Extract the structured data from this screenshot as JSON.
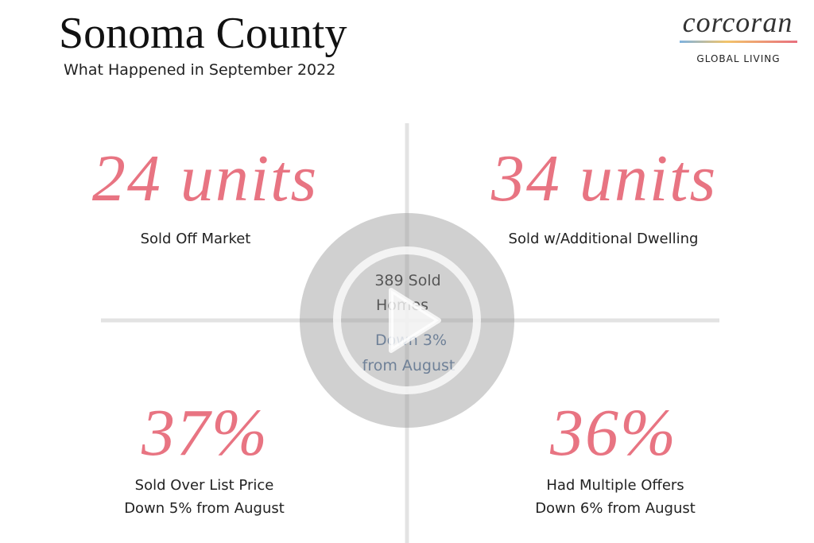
{
  "header": {
    "title": "Sonoma County",
    "subtitle": "What Happened in September 2022"
  },
  "logo": {
    "name": "corcoran",
    "tagline": "GLOBAL LIVING"
  },
  "stats": [
    {
      "figure": "24 units",
      "lines": [
        "Sold Off Market"
      ]
    },
    {
      "figure": "34 units",
      "lines": [
        "Sold w/Additional Dwelling"
      ]
    },
    {
      "figure": "37%",
      "lines": [
        "Sold Over List Price",
        "Down 5% from August"
      ]
    },
    {
      "figure": "36%",
      "lines": [
        "Had Multiple Offers",
        "Down 6% from August"
      ]
    }
  ],
  "center": {
    "lines": [
      "389 Sold",
      "Homes"
    ],
    "change": [
      "Down 3%",
      "from August"
    ]
  }
}
